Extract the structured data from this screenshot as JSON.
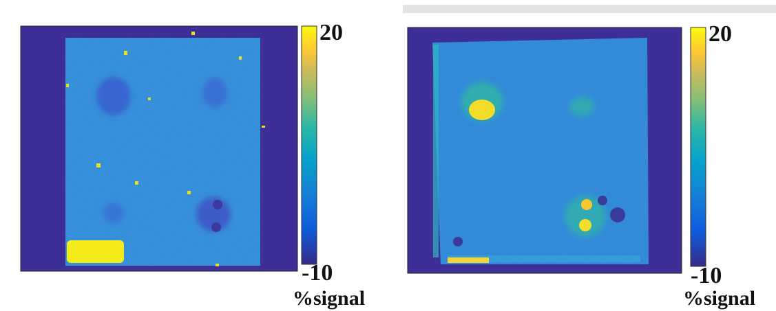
{
  "panels": [
    {
      "colorbar": {
        "max": "20",
        "min": "-10",
        "label": "%signal"
      }
    },
    {
      "colorbar": {
        "max": "20",
        "min": "-10",
        "label": "%signal"
      }
    }
  ]
}
